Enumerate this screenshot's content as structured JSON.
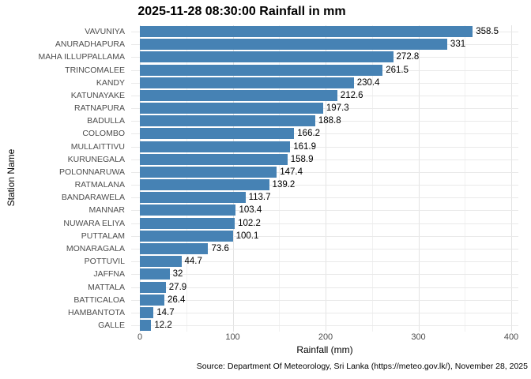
{
  "page": {
    "source_note": "Source: Department Of Meteorology, Sri Lanka (https://meteo.gov.lk/), November 28, 2025"
  },
  "chart_data": {
    "type": "bar",
    "orientation": "horizontal",
    "title": "2025-11-28 08:30:00 Rainfall in mm",
    "xlabel": "Rainfall (mm)",
    "ylabel": "Station Name",
    "xlim": [
      0,
      400
    ],
    "x_ticks": [
      0,
      100,
      200,
      300,
      400
    ],
    "grid": "vertical major at 100s and minor at 50s; horizontal major per category; no panel border",
    "legend": "none",
    "bar_color": "#4682B4",
    "value_labels_shown": true,
    "categories": [
      "VAVUNIYA",
      "ANURADHAPURA",
      "MAHA ILLUPPALLAMA",
      "TRINCOMALEE",
      "KANDY",
      "KATUNAYAKE",
      "RATNAPURA",
      "BADULLA",
      "COLOMBO",
      "MULLAITTIVU",
      "KURUNEGALA",
      "POLONNARUWA",
      "RATMALANA",
      "BANDARAWELA",
      "MANNAR",
      "NUWARA ELIYA",
      "PUTTALAM",
      "MONARAGALA",
      "POTTUVIL",
      "JAFFNA",
      "MATTALA",
      "BATTICALOA",
      "HAMBANTOTA",
      "GALLE"
    ],
    "values": [
      358.5,
      331,
      272.8,
      261.5,
      230.4,
      212.6,
      197.3,
      188.8,
      166.2,
      161.9,
      158.9,
      147.4,
      139.2,
      113.7,
      103.4,
      102.2,
      100.1,
      73.6,
      44.7,
      32,
      27.9,
      26.4,
      14.7,
      12.2
    ]
  },
  "colors": {
    "grid_major": "#e3e3e3",
    "grid_minor": "#f1f1f1",
    "row_grid": "#e9e9e9",
    "axis_text": "#4d4d4d",
    "value_text": "#000000",
    "background": "#ffffff"
  }
}
